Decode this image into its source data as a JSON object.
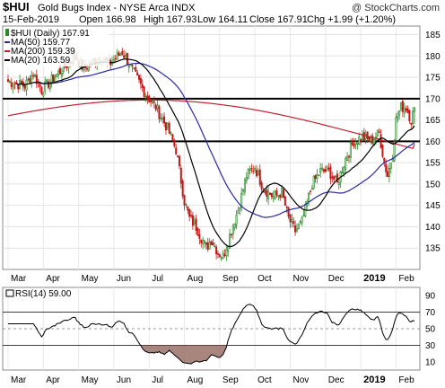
{
  "header": {
    "symbol": "$HUI",
    "name": "Gold Bugs Index - NYSE Arca INDX",
    "watermark": "@ StockCharts.com",
    "date": "15-Feb-2019",
    "quote": [
      {
        "label": "Open",
        "value": "166.98"
      },
      {
        "label": "High",
        "value": "167.93"
      },
      {
        "label": "Low",
        "value": "164.11"
      },
      {
        "label": "Close",
        "value": "167.91"
      },
      {
        "label": "Chg",
        "value": "+1.99 (+1.20%)"
      }
    ]
  },
  "legend": {
    "price": "$HUI (Daily) 167.91",
    "ma50": "MA(50) 159.77",
    "ma200": "MA(200) 159.39",
    "ma20": "MA(20) 163.59",
    "rsi": "RSI(14) 59.00"
  },
  "colors": {
    "up": "#2a8a2a",
    "down": "#c01818",
    "ma50": "#2a2aa0",
    "ma200": "#c02030",
    "ma20": "#000000",
    "rsi_line": "#000000",
    "rsi_oversold_fill": "#9a7068"
  },
  "chart_data": [
    {
      "type": "candlestick",
      "title": "$HUI Gold Bugs Index - NYSE Arca INDX",
      "period": "Daily",
      "y_range": [
        130,
        187
      ],
      "y_ticks": [
        135,
        140,
        145,
        150,
        155,
        160,
        165,
        170,
        175,
        180,
        185
      ],
      "x_labels": [
        "Mar",
        "Apr",
        "May",
        "Jun",
        "Jul",
        "Aug",
        "Sep",
        "Oct",
        "Nov",
        "Dec",
        "2019",
        "Feb"
      ],
      "horizontal_lines": [
        170,
        160
      ],
      "anchors": [
        [
          0,
          174
        ],
        [
          10,
          173
        ],
        [
          15,
          176
        ],
        [
          20,
          172
        ],
        [
          30,
          176
        ],
        [
          40,
          180
        ],
        [
          45,
          177
        ],
        [
          55,
          180
        ],
        [
          60,
          178
        ],
        [
          68,
          181
        ],
        [
          75,
          176
        ],
        [
          82,
          171
        ],
        [
          88,
          168
        ],
        [
          95,
          163
        ],
        [
          100,
          158
        ],
        [
          105,
          146
        ],
        [
          108,
          142
        ],
        [
          112,
          140
        ],
        [
          118,
          135
        ],
        [
          121,
          137
        ],
        [
          125,
          134
        ],
        [
          128,
          133
        ],
        [
          132,
          138
        ],
        [
          137,
          144
        ],
        [
          142,
          152
        ],
        [
          147,
          154
        ],
        [
          152,
          149
        ],
        [
          158,
          147
        ],
        [
          163,
          148
        ],
        [
          167,
          142
        ],
        [
          171,
          139
        ],
        [
          175,
          141
        ],
        [
          181,
          150
        ],
        [
          186,
          153
        ],
        [
          191,
          153
        ],
        [
          196,
          150
        ],
        [
          201,
          156
        ],
        [
          206,
          160
        ],
        [
          211,
          161
        ],
        [
          216,
          160
        ],
        [
          221,
          162
        ],
        [
          224,
          155
        ],
        [
          226,
          152
        ],
        [
          229,
          157
        ],
        [
          231,
          165
        ],
        [
          234,
          168
        ],
        [
          237,
          168
        ],
        [
          240,
          165
        ],
        [
          242,
          167.91
        ]
      ],
      "series": [
        {
          "name": "MA(20)",
          "last": 163.59
        },
        {
          "name": "MA(50)",
          "last": 159.77
        },
        {
          "name": "MA(200)",
          "last": 159.39
        }
      ],
      "last": {
        "open": 166.98,
        "high": 167.93,
        "low": 164.11,
        "close": 167.91
      }
    },
    {
      "type": "line",
      "title": "RSI(14)",
      "y_range": [
        0,
        100
      ],
      "y_ticks": [
        10,
        30,
        50,
        70,
        90
      ],
      "reference_lines": [
        70,
        30
      ],
      "mid_line": 50,
      "x_labels": [
        "Mar",
        "Apr",
        "May",
        "Jun",
        "Jul",
        "Aug",
        "Sep",
        "Oct",
        "Nov",
        "Dec",
        "2019",
        "Feb"
      ],
      "last": 59.0
    }
  ]
}
